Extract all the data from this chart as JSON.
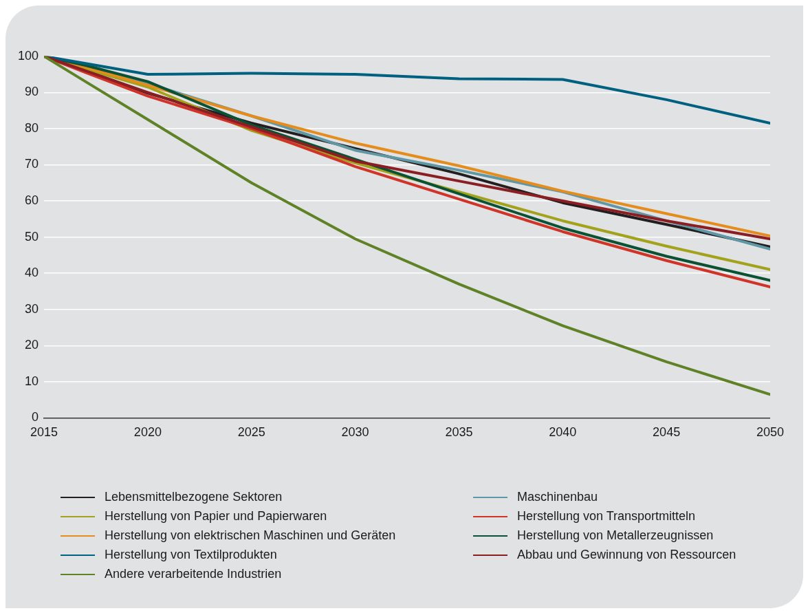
{
  "chart_data": {
    "type": "line",
    "x": [
      2015,
      2017,
      2020,
      2025,
      2030,
      2035,
      2040,
      2045,
      2050
    ],
    "series": [
      {
        "name": "Lebensmittelbezogene Sektoren",
        "color": "#231f20",
        "values": [
          100,
          96,
          89.8,
          81.5,
          74.5,
          67.5,
          59.5,
          53.5,
          47.3
        ]
      },
      {
        "name": "Maschinenbau",
        "color": "#5f97a5",
        "values": [
          100,
          97.5,
          92.5,
          83.5,
          74,
          68.5,
          62.5,
          54.5,
          46.7
        ]
      },
      {
        "name": "Herstellung von Papier und Papierwaren",
        "color": "#a3a21c",
        "values": [
          100,
          96.5,
          91.5,
          79.5,
          70.5,
          62.5,
          54.5,
          47.5,
          41
        ]
      },
      {
        "name": "Herstellung von Transportmitteln",
        "color": "#d03327",
        "values": [
          100,
          95.5,
          89,
          80,
          69.5,
          60.5,
          51.5,
          43.5,
          36.2
        ]
      },
      {
        "name": "Herstellung von elektrischen Maschinen und Geräten",
        "color": "#e48d1e",
        "values": [
          100,
          97,
          92,
          83.5,
          76,
          69.7,
          62.7,
          56.5,
          50.3
        ]
      },
      {
        "name": "Herstellung von Metallerzeugnissen",
        "color": "#0b5234",
        "values": [
          100,
          97.5,
          93,
          81,
          71.5,
          62,
          52.5,
          44.7,
          38
        ]
      },
      {
        "name": "Herstellung von Textilprodukten",
        "color": "#00607f",
        "values": [
          100,
          98,
          95,
          95.3,
          95,
          93.8,
          93.6,
          88,
          81.5
        ]
      },
      {
        "name": "Abbau und Gewinnung von Ressourcen",
        "color": "#8b1e23",
        "values": [
          100,
          96,
          90,
          80.5,
          71,
          65.5,
          60,
          54.5,
          49.5
        ]
      },
      {
        "name": "Andere verarbeitende Industrien",
        "color": "#5f8226",
        "values": [
          100,
          93,
          82.5,
          65,
          49.5,
          37,
          25.5,
          15.5,
          6.5
        ]
      }
    ],
    "xlim": [
      2015,
      2050
    ],
    "xticks": [
      2015,
      2020,
      2025,
      2030,
      2035,
      2040,
      2045,
      2050
    ],
    "ylim": [
      0,
      100
    ],
    "yticks": [
      0,
      10,
      20,
      30,
      40,
      50,
      60,
      70,
      80,
      90,
      100
    ],
    "grid": "y",
    "legend": "bottom",
    "marker": "none",
    "line_style": "solid"
  }
}
